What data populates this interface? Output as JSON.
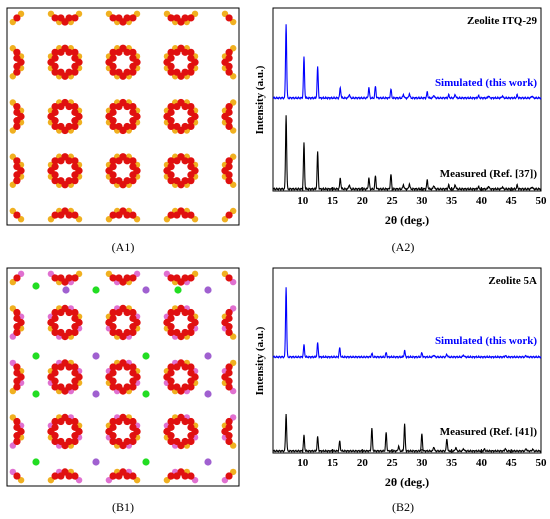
{
  "panels": {
    "a1": {
      "caption": "(A1)"
    },
    "a2": {
      "caption": "(A2)"
    },
    "b1": {
      "caption": "(B1)"
    },
    "b2": {
      "caption": "(B2)"
    }
  },
  "colors": {
    "oxygen": "#e01010",
    "silicon": "#f0b020",
    "aluminium": "#e070d0",
    "calcium": "#22dd22",
    "sodium": "#a060d0",
    "simulated": "#0000ff",
    "measured": "#000000"
  },
  "chart_data": [
    {
      "id": "a2",
      "type": "line",
      "title": "Zeolite ITQ-29",
      "xlabel": "2θ (deg.)",
      "ylabel": "Intensity (a.u.)",
      "xlim": [
        5,
        50
      ],
      "xticks": [
        10,
        15,
        20,
        25,
        30,
        35,
        40,
        45,
        50
      ],
      "grid": false,
      "series": [
        {
          "name": "Simulated (this work)",
          "color": "#0000ff",
          "offset": 0.55,
          "peaks": [
            [
              7.2,
              1.0
            ],
            [
              10.2,
              0.55
            ],
            [
              12.5,
              0.42
            ],
            [
              16.3,
              0.14
            ],
            [
              17.8,
              0.05
            ],
            [
              21.1,
              0.14
            ],
            [
              22.2,
              0.16
            ],
            [
              24.8,
              0.12
            ],
            [
              26.9,
              0.05
            ],
            [
              27.9,
              0.06
            ],
            [
              30.9,
              0.08
            ],
            [
              32.0,
              0.04
            ],
            [
              34.5,
              0.04
            ],
            [
              35.6,
              0.05
            ],
            [
              39.5,
              0.03
            ],
            [
              41.2,
              0.03
            ],
            [
              43.5,
              0.03
            ],
            [
              46.0,
              0.04
            ],
            [
              48.5,
              0.03
            ]
          ]
        },
        {
          "name": "Measured (Ref. [37])",
          "color": "#000000",
          "offset": 0.0,
          "peaks": [
            [
              7.2,
              1.0
            ],
            [
              10.2,
              0.62
            ],
            [
              12.5,
              0.5
            ],
            [
              16.3,
              0.15
            ],
            [
              17.8,
              0.06
            ],
            [
              21.1,
              0.15
            ],
            [
              22.2,
              0.18
            ],
            [
              24.8,
              0.2
            ],
            [
              26.9,
              0.06
            ],
            [
              27.9,
              0.07
            ],
            [
              30.9,
              0.12
            ],
            [
              32.0,
              0.05
            ],
            [
              34.5,
              0.05
            ],
            [
              35.6,
              0.06
            ],
            [
              39.5,
              0.03
            ],
            [
              41.2,
              0.04
            ],
            [
              43.5,
              0.03
            ],
            [
              46.0,
              0.05
            ],
            [
              48.5,
              0.03
            ]
          ]
        }
      ]
    },
    {
      "id": "b2",
      "type": "line",
      "title": "Zeolite 5A",
      "xlabel": "2θ (deg.)",
      "ylabel": "Intensity (a.u.)",
      "xlim": [
        5,
        50
      ],
      "xticks": [
        10,
        15,
        20,
        25,
        30,
        35,
        40,
        45,
        50
      ],
      "grid": false,
      "series": [
        {
          "name": "Simulated (this work)",
          "color": "#0000ff",
          "offset": 0.55,
          "peaks": [
            [
              7.2,
              1.0
            ],
            [
              10.2,
              0.17
            ],
            [
              12.5,
              0.2
            ],
            [
              16.2,
              0.13
            ],
            [
              21.6,
              0.05
            ],
            [
              24.0,
              0.06
            ],
            [
              27.1,
              0.09
            ],
            [
              30.0,
              0.06
            ],
            [
              32.0,
              0.03
            ],
            [
              34.2,
              0.04
            ],
            [
              37.0,
              0.03
            ],
            [
              44.0,
              0.02
            ],
            [
              47.5,
              0.02
            ]
          ]
        },
        {
          "name": "Measured (Ref. [41])",
          "color": "#000000",
          "offset": 0.0,
          "peaks": [
            [
              7.2,
              0.6
            ],
            [
              10.2,
              0.25
            ],
            [
              12.5,
              0.23
            ],
            [
              16.2,
              0.16
            ],
            [
              21.6,
              0.37
            ],
            [
              24.0,
              0.3
            ],
            [
              26.1,
              0.08
            ],
            [
              27.1,
              0.43
            ],
            [
              30.0,
              0.28
            ],
            [
              32.0,
              0.07
            ],
            [
              34.2,
              0.2
            ],
            [
              35.7,
              0.06
            ],
            [
              37.0,
              0.04
            ],
            [
              40.5,
              0.03
            ],
            [
              44.0,
              0.04
            ],
            [
              47.5,
              0.04
            ],
            [
              48.6,
              0.03
            ]
          ]
        }
      ]
    }
  ]
}
